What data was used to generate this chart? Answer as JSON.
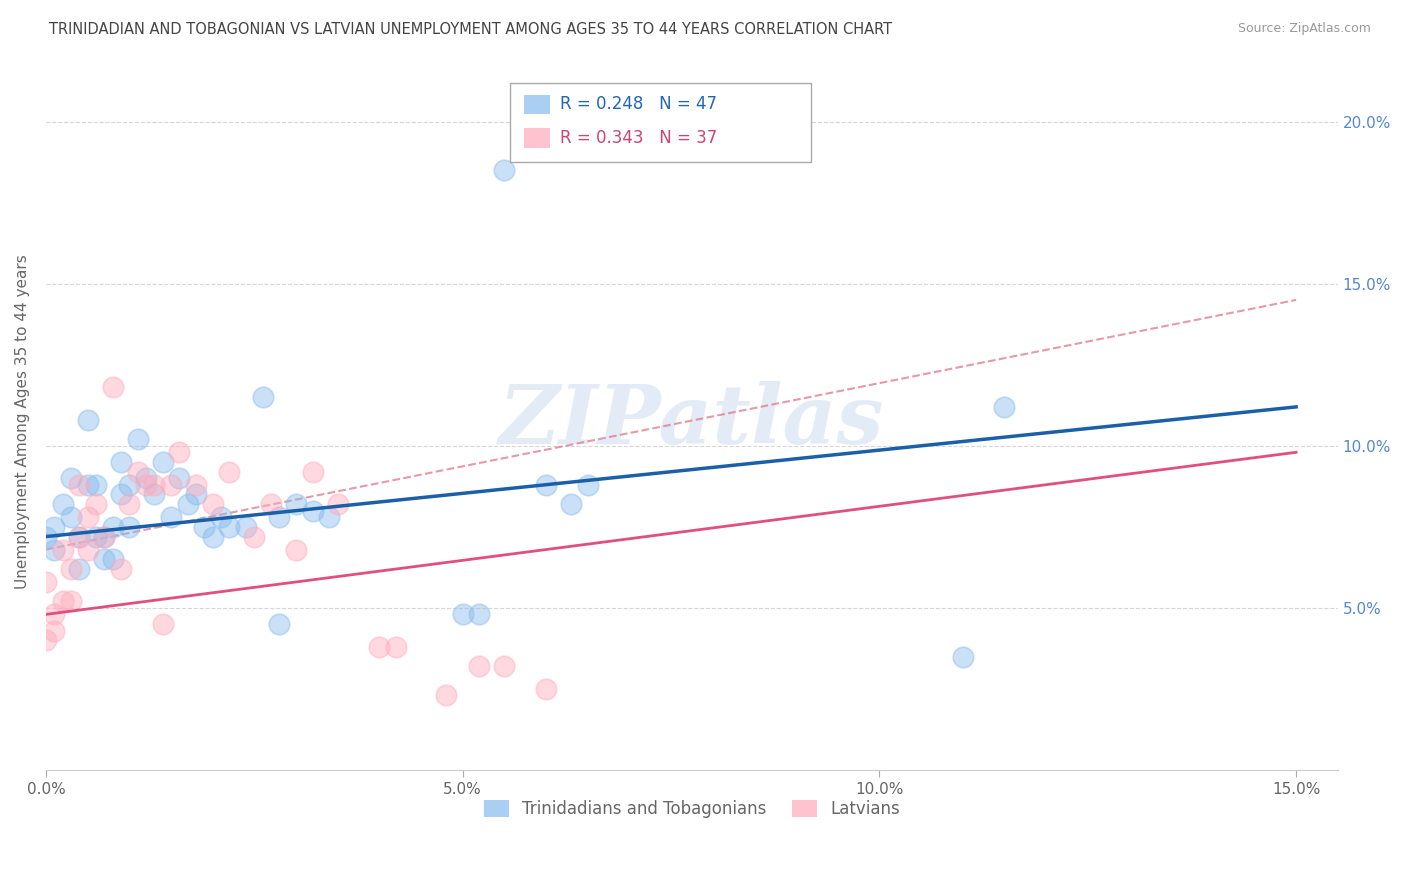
{
  "title": "TRINIDADIAN AND TOBAGONIAN VS LATVIAN UNEMPLOYMENT AMONG AGES 35 TO 44 YEARS CORRELATION CHART",
  "source": "Source: ZipAtlas.com",
  "ylabel": "Unemployment Among Ages 35 to 44 years",
  "xlim": [
    0.0,
    0.155
  ],
  "ylim": [
    0.0,
    0.215
  ],
  "xticks": [
    0.0,
    0.05,
    0.1,
    0.15
  ],
  "yticks": [
    0.05,
    0.1,
    0.15,
    0.2
  ],
  "xticklabels": [
    "0.0%",
    "5.0%",
    "10.0%",
    "15.0%"
  ],
  "yticklabels_right": [
    "5.0%",
    "10.0%",
    "15.0%",
    "20.0%"
  ],
  "legend_blue_label": "Trinidadians and Tobagonians",
  "legend_pink_label": "Latvians",
  "legend_r_blue": "R = 0.248",
  "legend_n_blue": "N = 47",
  "legend_r_pink": "R = 0.343",
  "legend_n_pink": "N = 37",
  "blue_color": "#88bbee",
  "pink_color": "#ffaabb",
  "blue_line_color": "#1a5fa8",
  "pink_line_color": "#e0507a",
  "watermark": "ZIPatlas",
  "background_color": "#ffffff",
  "grid_color": "#cccccc",
  "blue_line_start_y": 0.072,
  "blue_line_end_y": 0.112,
  "pink_line_start_y": 0.048,
  "pink_line_end_y": 0.098,
  "dashed_line_color": "#e08090",
  "dashed_line_start_y": 0.068,
  "dashed_line_end_y": 0.145,
  "trinidadian_x": [
    0.0,
    0.001,
    0.001,
    0.002,
    0.003,
    0.003,
    0.004,
    0.004,
    0.005,
    0.005,
    0.006,
    0.006,
    0.007,
    0.007,
    0.008,
    0.008,
    0.009,
    0.009,
    0.01,
    0.01,
    0.011,
    0.012,
    0.013,
    0.014,
    0.015,
    0.016,
    0.017,
    0.018,
    0.019,
    0.02,
    0.021,
    0.022,
    0.024,
    0.026,
    0.028,
    0.03,
    0.032,
    0.034,
    0.05,
    0.052,
    0.055,
    0.06,
    0.063,
    0.065,
    0.11,
    0.115,
    0.028
  ],
  "trinidadian_y": [
    0.072,
    0.075,
    0.068,
    0.082,
    0.09,
    0.078,
    0.072,
    0.062,
    0.108,
    0.088,
    0.088,
    0.072,
    0.072,
    0.065,
    0.075,
    0.065,
    0.085,
    0.095,
    0.088,
    0.075,
    0.102,
    0.09,
    0.085,
    0.095,
    0.078,
    0.09,
    0.082,
    0.085,
    0.075,
    0.072,
    0.078,
    0.075,
    0.075,
    0.115,
    0.078,
    0.082,
    0.08,
    0.078,
    0.048,
    0.048,
    0.185,
    0.088,
    0.082,
    0.088,
    0.035,
    0.112,
    0.045
  ],
  "latvian_x": [
    0.0,
    0.0,
    0.001,
    0.001,
    0.002,
    0.002,
    0.003,
    0.003,
    0.004,
    0.004,
    0.005,
    0.005,
    0.006,
    0.007,
    0.008,
    0.009,
    0.01,
    0.011,
    0.012,
    0.013,
    0.014,
    0.015,
    0.016,
    0.018,
    0.02,
    0.022,
    0.025,
    0.027,
    0.03,
    0.032,
    0.035,
    0.04,
    0.042,
    0.048,
    0.052,
    0.055,
    0.06
  ],
  "latvian_y": [
    0.04,
    0.058,
    0.043,
    0.048,
    0.052,
    0.068,
    0.062,
    0.052,
    0.088,
    0.072,
    0.068,
    0.078,
    0.082,
    0.072,
    0.118,
    0.062,
    0.082,
    0.092,
    0.088,
    0.088,
    0.045,
    0.088,
    0.098,
    0.088,
    0.082,
    0.092,
    0.072,
    0.082,
    0.068,
    0.092,
    0.082,
    0.038,
    0.038,
    0.023,
    0.032,
    0.032,
    0.025
  ]
}
